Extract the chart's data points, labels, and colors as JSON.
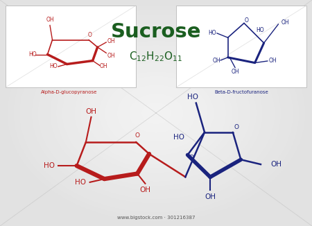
{
  "title": "Sucrose",
  "red_color": "#b71c1c",
  "blue_color": "#1a237e",
  "green_color": "#1b5e20",
  "label_alpha": "Alpha-D-glucopyranose",
  "label_beta": "Beta-D-fructofuranose",
  "watermark": "www.bigstock.com · 301216387",
  "bg_light": "#f0f0f0",
  "bg_dark": "#d0d0d0",
  "panel_bg": "#f8f8f8",
  "panel_edge": "#cccccc"
}
